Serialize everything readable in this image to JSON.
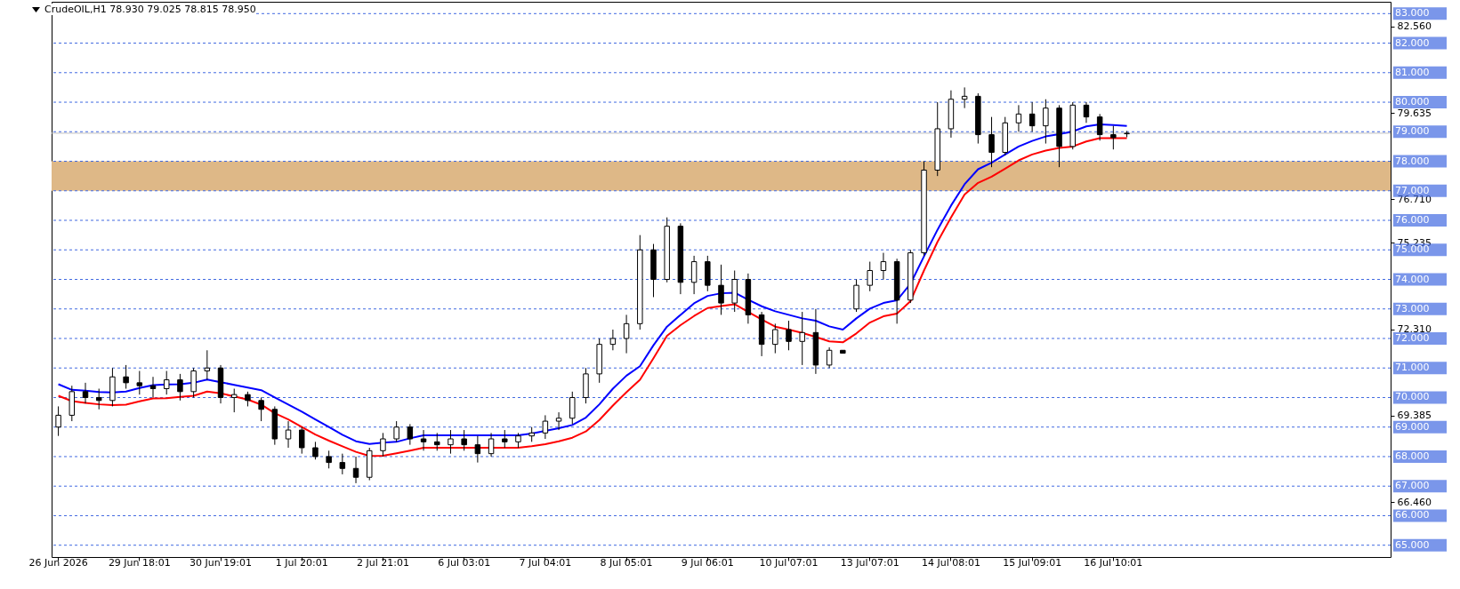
{
  "chart_data": {
    "type": "candlestick",
    "title": "CrudeOIL,H1  78.930 79.025 78.815 78.950",
    "categories": [
      "26 Jun 2026",
      null,
      null,
      null,
      null,
      null,
      "29 Jun 18:01",
      null,
      null,
      null,
      null,
      null,
      "30 Jun 19:01",
      null,
      null,
      null,
      null,
      null,
      "1 Jul 20:01",
      null,
      null,
      null,
      null,
      null,
      "2 Jul 21:01",
      null,
      null,
      null,
      null,
      null,
      "6 Jul 03:01",
      null,
      null,
      null,
      null,
      null,
      "7 Jul 04:01",
      null,
      null,
      null,
      null,
      null,
      "8 Jul 05:01",
      null,
      null,
      null,
      null,
      null,
      "9 Jul 06:01",
      null,
      null,
      null,
      null,
      null,
      "10 Jul 07:01",
      null,
      null,
      null,
      null,
      null,
      "13 Jul 07:01",
      null,
      null,
      null,
      null,
      null,
      "14 Jul 08:01",
      null,
      null,
      null,
      null,
      null,
      "15 Jul 09:01",
      null,
      null,
      null,
      null,
      null,
      "16 Jul 10:01",
      null,
      null,
      null,
      null,
      null,
      null,
      null,
      null,
      null,
      null,
      null,
      null,
      null,
      null,
      null,
      null,
      null,
      null,
      null,
      null
    ],
    "ohlc": [
      [
        69.0,
        69.7,
        68.7,
        69.4
      ],
      [
        69.4,
        70.4,
        69.2,
        70.2
      ],
      [
        70.2,
        70.5,
        69.8,
        70.0
      ],
      [
        70.0,
        70.3,
        69.6,
        69.9
      ],
      [
        69.9,
        71.0,
        69.7,
        70.7
      ],
      [
        70.7,
        71.1,
        70.3,
        70.5
      ],
      [
        70.5,
        70.9,
        70.1,
        70.4
      ],
      [
        70.4,
        70.7,
        70.0,
        70.3
      ],
      [
        70.3,
        70.9,
        70.1,
        70.6
      ],
      [
        70.6,
        70.8,
        69.9,
        70.2
      ],
      [
        70.2,
        71.0,
        70.0,
        70.9
      ],
      [
        70.9,
        71.6,
        70.6,
        71.0
      ],
      [
        71.0,
        71.1,
        69.8,
        70.0
      ],
      [
        70.0,
        70.3,
        69.5,
        70.1
      ],
      [
        70.1,
        70.2,
        69.7,
        69.9
      ],
      [
        69.9,
        70.0,
        69.2,
        69.6
      ],
      [
        69.6,
        69.7,
        68.4,
        68.6
      ],
      [
        68.6,
        69.2,
        68.3,
        68.9
      ],
      [
        68.9,
        69.0,
        68.1,
        68.3
      ],
      [
        68.3,
        68.5,
        67.9,
        68.0
      ],
      [
        68.0,
        68.2,
        67.6,
        67.8
      ],
      [
        67.8,
        68.1,
        67.4,
        67.6
      ],
      [
        67.6,
        68.0,
        67.1,
        67.3
      ],
      [
        67.3,
        68.3,
        67.2,
        68.2
      ],
      [
        68.2,
        68.8,
        68.0,
        68.6
      ],
      [
        68.6,
        69.2,
        68.5,
        69.0
      ],
      [
        69.0,
        69.1,
        68.4,
        68.6
      ],
      [
        68.6,
        68.9,
        68.2,
        68.5
      ],
      [
        68.5,
        68.8,
        68.2,
        68.4
      ],
      [
        68.4,
        68.9,
        68.1,
        68.6
      ],
      [
        68.6,
        68.9,
        68.2,
        68.4
      ],
      [
        68.4,
        68.7,
        67.8,
        68.1
      ],
      [
        68.1,
        68.8,
        68.0,
        68.6
      ],
      [
        68.6,
        68.9,
        68.3,
        68.5
      ],
      [
        68.5,
        68.8,
        68.3,
        68.7
      ],
      [
        68.7,
        69.0,
        68.5,
        68.8
      ],
      [
        68.8,
        69.4,
        68.6,
        69.2
      ],
      [
        69.2,
        69.5,
        68.9,
        69.3
      ],
      [
        69.3,
        70.2,
        69.1,
        70.0
      ],
      [
        70.0,
        71.0,
        69.8,
        70.8
      ],
      [
        70.8,
        72.0,
        70.5,
        71.8
      ],
      [
        71.8,
        72.3,
        71.6,
        72.0
      ],
      [
        72.0,
        72.8,
        71.5,
        72.5
      ],
      [
        72.5,
        75.5,
        72.3,
        75.0
      ],
      [
        75.0,
        75.2,
        73.4,
        74.0
      ],
      [
        74.0,
        76.1,
        73.9,
        75.8
      ],
      [
        75.8,
        75.9,
        73.5,
        73.9
      ],
      [
        73.9,
        74.8,
        73.5,
        74.6
      ],
      [
        74.6,
        74.8,
        73.6,
        73.8
      ],
      [
        73.8,
        74.5,
        72.8,
        73.2
      ],
      [
        73.2,
        74.3,
        72.9,
        74.0
      ],
      [
        74.0,
        74.2,
        72.5,
        72.8
      ],
      [
        72.8,
        72.9,
        71.4,
        71.8
      ],
      [
        71.8,
        72.5,
        71.5,
        72.3
      ],
      [
        72.3,
        72.6,
        71.6,
        71.9
      ],
      [
        71.9,
        72.9,
        71.1,
        72.2
      ],
      [
        72.2,
        73.0,
        70.8,
        71.1
      ],
      [
        71.1,
        71.7,
        71.0,
        71.6
      ],
      [
        71.6,
        71.6,
        71.5,
        71.5
      ],
      [
        73.0,
        74.0,
        72.9,
        73.8
      ],
      [
        73.8,
        74.6,
        73.6,
        74.3
      ],
      [
        74.3,
        74.9,
        74.0,
        74.6
      ],
      [
        74.6,
        74.7,
        72.5,
        73.3
      ],
      [
        73.3,
        75.0,
        73.2,
        74.9
      ],
      [
        74.9,
        78.0,
        74.8,
        77.7
      ],
      [
        77.7,
        80.0,
        77.5,
        79.1
      ],
      [
        79.1,
        80.4,
        78.8,
        80.1
      ],
      [
        80.1,
        80.5,
        79.8,
        80.2
      ],
      [
        80.2,
        80.3,
        78.6,
        78.9
      ],
      [
        78.9,
        79.5,
        77.8,
        78.3
      ],
      [
        78.3,
        79.5,
        78.2,
        79.3
      ],
      [
        79.3,
        79.9,
        79.0,
        79.6
      ],
      [
        79.6,
        80.0,
        79.0,
        79.2
      ],
      [
        79.2,
        80.1,
        78.6,
        79.8
      ],
      [
        79.8,
        79.9,
        77.8,
        78.5
      ],
      [
        78.5,
        80.0,
        78.4,
        79.9
      ],
      [
        79.9,
        80.0,
        79.3,
        79.5
      ],
      [
        79.5,
        79.6,
        78.7,
        78.9
      ],
      [
        78.9,
        79.2,
        78.4,
        78.8
      ],
      [
        78.93,
        79.025,
        78.815,
        78.95
      ],
      null,
      null,
      null,
      null,
      null,
      null,
      null,
      null,
      null,
      null,
      null,
      null,
      null,
      null,
      null,
      null,
      null,
      null,
      null
    ],
    "series": [
      {
        "type": "line",
        "color": "#0000ff",
        "values": [
          70.45,
          70.26,
          70.23,
          70.19,
          70.17,
          70.2,
          70.32,
          70.42,
          70.44,
          70.45,
          70.5,
          70.61,
          70.52,
          70.43,
          70.34,
          70.25,
          70.0,
          69.76,
          69.52,
          69.26,
          69.0,
          68.74,
          68.52,
          68.43,
          68.47,
          68.5,
          68.62,
          68.72,
          68.72,
          68.72,
          68.72,
          68.72,
          68.72,
          68.72,
          68.72,
          68.78,
          68.87,
          68.96,
          69.07,
          69.32,
          69.77,
          70.3,
          70.74,
          71.06,
          71.77,
          72.4,
          72.8,
          73.19,
          73.44,
          73.53,
          73.55,
          73.31,
          73.09,
          72.92,
          72.8,
          72.68,
          72.6,
          72.41,
          72.3,
          72.68,
          73.01,
          73.2,
          73.29,
          73.85,
          74.78,
          75.68,
          76.5,
          77.22,
          77.73,
          77.95,
          78.23,
          78.5,
          78.69,
          78.84,
          78.92,
          79.01,
          79.18,
          79.25,
          79.23,
          79.2,
          null,
          null,
          null,
          null,
          null,
          null,
          null,
          null,
          null,
          null,
          null,
          null,
          null,
          null,
          null,
          null,
          null,
          null,
          null
        ]
      },
      {
        "type": "line",
        "color": "#ff0000",
        "values": [
          70.06,
          69.88,
          69.82,
          69.77,
          69.74,
          69.76,
          69.87,
          69.97,
          69.98,
          70.02,
          70.06,
          70.2,
          70.14,
          70.04,
          69.93,
          69.76,
          69.47,
          69.26,
          69.0,
          68.75,
          68.54,
          68.35,
          68.16,
          68.02,
          68.03,
          68.11,
          68.2,
          68.3,
          68.3,
          68.3,
          68.3,
          68.3,
          68.3,
          68.3,
          68.3,
          68.35,
          68.42,
          68.52,
          68.64,
          68.85,
          69.24,
          69.73,
          70.18,
          70.6,
          71.33,
          72.09,
          72.45,
          72.76,
          73.03,
          73.1,
          73.16,
          72.9,
          72.64,
          72.4,
          72.3,
          72.19,
          72.05,
          71.9,
          71.87,
          72.17,
          72.54,
          72.75,
          72.84,
          73.26,
          74.3,
          75.27,
          76.1,
          76.87,
          77.27,
          77.48,
          77.75,
          78.03,
          78.23,
          78.36,
          78.45,
          78.5,
          78.67,
          78.78,
          78.78,
          78.78,
          null,
          null,
          null,
          null,
          null,
          null,
          null,
          null,
          null,
          null,
          null,
          null,
          null,
          null,
          null,
          null,
          null,
          null,
          null
        ]
      }
    ],
    "ylim": [
      64.6,
      83.4
    ],
    "yticks": [
      {
        "value": 82.56,
        "label": "82.560"
      },
      {
        "value": 79.635,
        "label": "79.635"
      },
      {
        "value": 76.71,
        "label": "76.710"
      },
      {
        "value": 75.235,
        "label": "75.235"
      },
      {
        "value": 72.31,
        "label": "72.310"
      },
      {
        "value": 69.385,
        "label": "69.385"
      },
      {
        "value": 66.46,
        "label": "66.460"
      }
    ],
    "ref_lines": [
      {
        "axis": "y",
        "value": 83,
        "label": "83.000",
        "color": "#4169e1",
        "line_style": "dashed"
      },
      {
        "axis": "y",
        "value": 82,
        "label": "82.000",
        "color": "#4169e1",
        "line_style": "dashed"
      },
      {
        "axis": "y",
        "value": 81,
        "label": "81.000",
        "color": "#4169e1",
        "line_style": "dashed"
      },
      {
        "axis": "y",
        "value": 80,
        "label": "80.000",
        "color": "#4169e1",
        "line_style": "dashed"
      },
      {
        "axis": "y",
        "value": 79,
        "label": "79.000",
        "color": "#4169e1",
        "line_style": "dashed"
      },
      {
        "axis": "y",
        "value": 78,
        "label": "78.000",
        "color": "#4169e1",
        "line_style": "dashed"
      },
      {
        "axis": "y",
        "value": 77,
        "label": "77.000",
        "color": "#4169e1",
        "line_style": "dashed"
      },
      {
        "axis": "y",
        "value": 76,
        "label": "76.000",
        "color": "#4169e1",
        "line_style": "dashed"
      },
      {
        "axis": "y",
        "value": 75,
        "label": "75.000",
        "color": "#4169e1",
        "line_style": "dashed"
      },
      {
        "axis": "y",
        "value": 74,
        "label": "74.000",
        "color": "#4169e1",
        "line_style": "dashed"
      },
      {
        "axis": "y",
        "value": 73,
        "label": "73.000",
        "color": "#4169e1",
        "line_style": "dashed"
      },
      {
        "axis": "y",
        "value": 72,
        "label": "72.000",
        "color": "#4169e1",
        "line_style": "dashed"
      },
      {
        "axis": "y",
        "value": 71,
        "label": "71.000",
        "color": "#4169e1",
        "line_style": "dashed"
      },
      {
        "axis": "y",
        "value": 70,
        "label": "70.000",
        "color": "#4169e1",
        "line_style": "dashed"
      },
      {
        "axis": "y",
        "value": 69,
        "label": "69.000",
        "color": "#4169e1",
        "line_style": "dashed"
      },
      {
        "axis": "y",
        "value": 68,
        "label": "68.000",
        "color": "#4169e1",
        "line_style": "dashed"
      },
      {
        "axis": "y",
        "value": 67,
        "label": "67.000",
        "color": "#4169e1",
        "line_style": "dashed"
      },
      {
        "axis": "y",
        "value": 66,
        "label": "66.000",
        "color": "#4169e1",
        "line_style": "dashed"
      },
      {
        "axis": "y",
        "value": 65,
        "label": "65.000",
        "color": "#4169e1",
        "line_style": "dashed"
      },
      {
        "axis": "y",
        "value": 78.95,
        "label": null,
        "color": "#c0c0c0",
        "line_style": "solid"
      }
    ],
    "bands": [
      {
        "axis": "y",
        "from": 77,
        "to": 78,
        "label": null,
        "color": "#deb887"
      }
    ]
  }
}
